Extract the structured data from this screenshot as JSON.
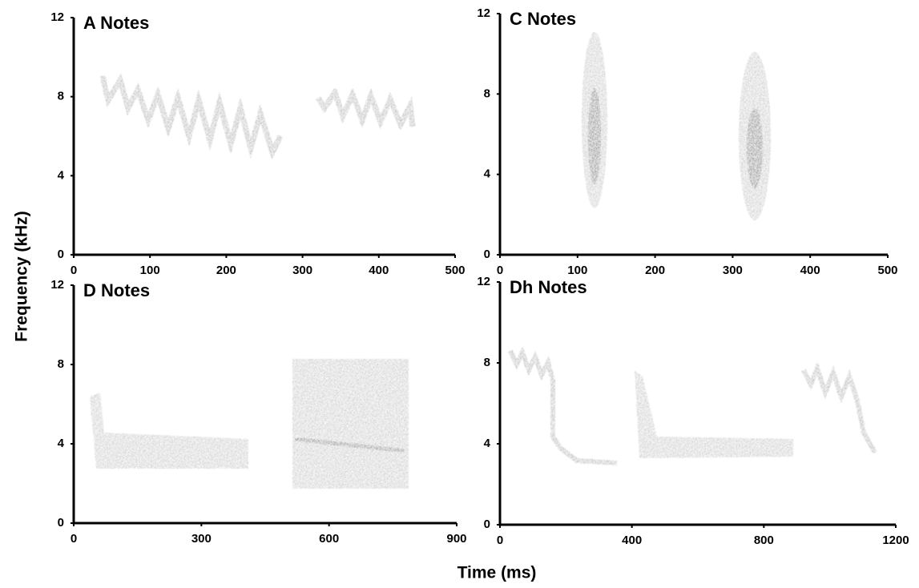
{
  "chart_data": [
    {
      "type": "spectrogram",
      "title": "A Notes",
      "xlim": [
        0,
        500
      ],
      "xticks": [
        0,
        100,
        200,
        300,
        400,
        500
      ],
      "ylim": [
        0,
        12
      ],
      "yticks": [
        0,
        4,
        8,
        12
      ]
    },
    {
      "type": "spectrogram",
      "title": "C Notes",
      "xlim": [
        0,
        500
      ],
      "xticks": [
        0,
        100,
        200,
        300,
        400,
        500
      ],
      "ylim": [
        0,
        12
      ],
      "yticks": [
        0,
        4,
        8,
        12
      ]
    },
    {
      "type": "spectrogram",
      "title": "D Notes",
      "xlim": [
        0,
        900
      ],
      "xticks": [
        0,
        300,
        600,
        900
      ],
      "ylim": [
        0,
        12
      ],
      "yticks": [
        0,
        4,
        8,
        12
      ]
    },
    {
      "type": "spectrogram",
      "title": "Dh Notes",
      "xlim": [
        0,
        1200
      ],
      "xticks": [
        0,
        400,
        800,
        1200
      ],
      "ylim": [
        0,
        12
      ],
      "yticks": [
        0,
        4,
        8,
        12
      ]
    }
  ],
  "xlabel": "Time (ms)",
  "ylabel": "Frequency (kHz)"
}
